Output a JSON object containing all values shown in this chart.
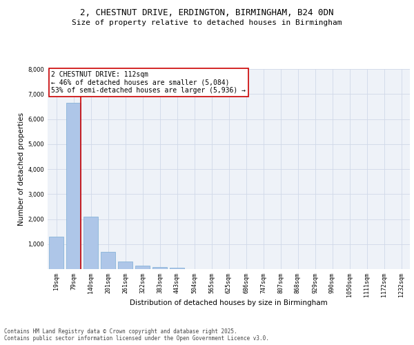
{
  "title_line1": "2, CHESTNUT DRIVE, ERDINGTON, BIRMINGHAM, B24 0DN",
  "title_line2": "Size of property relative to detached houses in Birmingham",
  "xlabel": "Distribution of detached houses by size in Birmingham",
  "ylabel": "Number of detached properties",
  "bar_labels": [
    "19sqm",
    "79sqm",
    "140sqm",
    "201sqm",
    "261sqm",
    "322sqm",
    "383sqm",
    "443sqm",
    "504sqm",
    "565sqm",
    "625sqm",
    "686sqm",
    "747sqm",
    "807sqm",
    "868sqm",
    "929sqm",
    "990sqm",
    "1050sqm",
    "1111sqm",
    "1172sqm",
    "1232sqm"
  ],
  "bar_values": [
    1310,
    6650,
    2090,
    700,
    300,
    140,
    90,
    60,
    0,
    0,
    0,
    0,
    0,
    0,
    0,
    0,
    0,
    0,
    0,
    0,
    0
  ],
  "bar_color": "#aec6e8",
  "bar_edge_color": "#7aadd4",
  "vline_x_idx": 1,
  "vline_color": "#cc0000",
  "annotation_text": "2 CHESTNUT DRIVE: 112sqm\n← 46% of detached houses are smaller (5,084)\n53% of semi-detached houses are larger (5,936) →",
  "annotation_box_edge": "#cc0000",
  "ylim": [
    0,
    8000
  ],
  "yticks": [
    0,
    1000,
    2000,
    3000,
    4000,
    5000,
    6000,
    7000,
    8000
  ],
  "grid_color": "#d0d8e8",
  "bg_color": "#eef2f8",
  "footnote": "Contains HM Land Registry data © Crown copyright and database right 2025.\nContains public sector information licensed under the Open Government Licence v3.0.",
  "title_fontsize": 9,
  "subtitle_fontsize": 8,
  "axis_label_fontsize": 7.5,
  "tick_fontsize": 6,
  "annot_fontsize": 7,
  "footnote_fontsize": 5.5
}
